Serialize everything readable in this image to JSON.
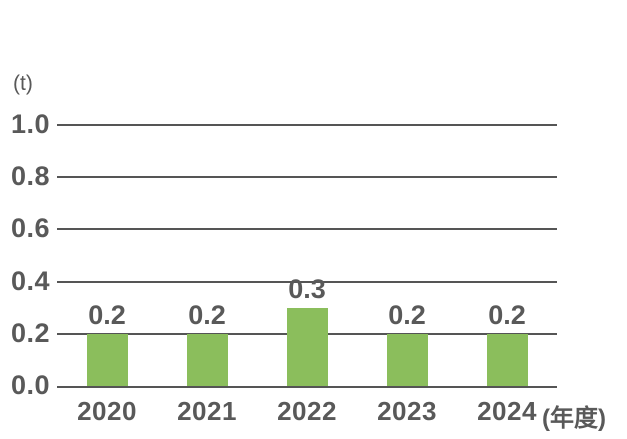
{
  "chart_data": {
    "type": "bar",
    "title": "",
    "categories": [
      "2020",
      "2021",
      "2022",
      "2023",
      "2024"
    ],
    "values": [
      0.2,
      0.2,
      0.3,
      0.2,
      0.2
    ],
    "data_labels": [
      "0.2",
      "0.2",
      "0.3",
      "0.2",
      "0.2"
    ],
    "y_axis_unit": "(t)",
    "x_axis_unit": "(年度)",
    "ylim": [
      0,
      1.0
    ],
    "yticks": [
      0.0,
      0.2,
      0.4,
      0.6,
      0.8,
      1.0
    ],
    "ytick_labels": [
      "0.0",
      "0.2",
      "0.4",
      "0.6",
      "0.8",
      "1.0"
    ],
    "grid": true,
    "legend": false,
    "colors": {
      "bar": "#8bbe5c",
      "gridline": "#555555",
      "text": "#595959",
      "background": "#ffffff"
    }
  }
}
